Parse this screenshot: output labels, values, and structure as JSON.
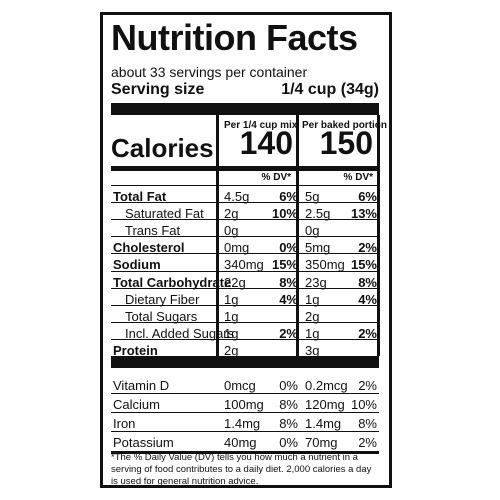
{
  "label": {
    "title": "Nutrition Facts",
    "servings": "about 33 servings per container",
    "serving_size_label": "Serving size",
    "serving_size_value": "1/4 cup (34g)",
    "col1_header": "Per 1/4 cup mix",
    "col2_header": "Per baked portion",
    "calories_label": "Calories",
    "calories_col1": "140",
    "calories_col2": "150",
    "dv_header": "% DV*",
    "nutrients": [
      {
        "label": "Total Fat",
        "a1": "4.5g",
        "d1": "6%",
        "a2": "5g",
        "d2": "6%"
      },
      {
        "label": "Saturated Fat",
        "a1": "2g",
        "d1": "10%",
        "a2": "2.5g",
        "d2": "13%"
      },
      {
        "label": "Trans Fat",
        "a1": "0g",
        "d1": "",
        "a2": "0g",
        "d2": ""
      },
      {
        "label": "Cholesterol",
        "a1": "0mg",
        "d1": "0%",
        "a2": "5mg",
        "d2": "2%"
      },
      {
        "label": "Sodium",
        "a1": "340mg",
        "d1": "15%",
        "a2": "350mg",
        "d2": "15%"
      },
      {
        "label": "Total Carbohydrate",
        "a1": "22g",
        "d1": "8%",
        "a2": "23g",
        "d2": "8%"
      },
      {
        "label": "Dietary Fiber",
        "a1": "1g",
        "d1": "4%",
        "a2": "1g",
        "d2": "4%"
      },
      {
        "label": "Total Sugars",
        "a1": "1g",
        "d1": "",
        "a2": "2g",
        "d2": ""
      },
      {
        "label": "Incl. Added Sugars",
        "a1": "1g",
        "d1": "2%",
        "a2": "1g",
        "d2": "2%"
      },
      {
        "label": "Protein",
        "a1": "2g",
        "d1": "",
        "a2": "3g",
        "d2": ""
      }
    ],
    "vitamins": [
      {
        "label": "Vitamin D",
        "a1": "0mcg",
        "d1": "0%",
        "a2": "0.2mcg",
        "d2": "2%"
      },
      {
        "label": "Calcium",
        "a1": "100mg",
        "d1": "8%",
        "a2": "120mg",
        "d2": "10%"
      },
      {
        "label": "Iron",
        "a1": "1.4mg",
        "d1": "8%",
        "a2": "1.4mg",
        "d2": "8%"
      },
      {
        "label": "Potassium",
        "a1": "40mg",
        "d1": "0%",
        "a2": "70mg",
        "d2": "2%"
      }
    ],
    "footnote": "*The % Daily Value (DV) tells you how much a nutrient in a serving of food contributes to a daily diet. 2,000 calories a day is used for general nutrition advice."
  }
}
